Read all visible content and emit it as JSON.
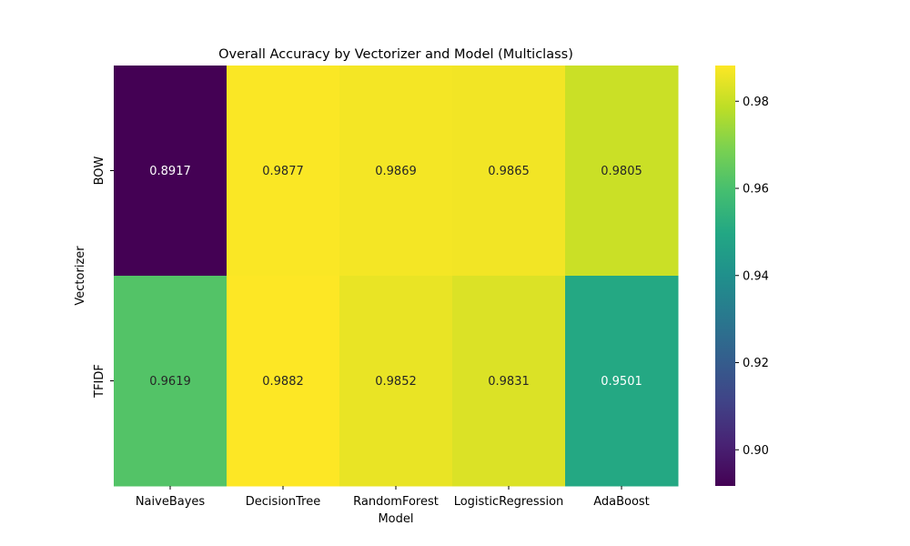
{
  "chart_data": {
    "type": "heatmap",
    "title": "Overall Accuracy by Vectorizer and Model (Multiclass)",
    "xlabel": "Model",
    "ylabel": "Vectorizer",
    "x_categories": [
      "NaiveBayes",
      "DecisionTree",
      "RandomForest",
      "LogisticRegression",
      "AdaBoost"
    ],
    "y_categories": [
      "BOW",
      "TFIDF"
    ],
    "values": [
      [
        0.8917,
        0.9877,
        0.9869,
        0.9865,
        0.9805
      ],
      [
        0.9619,
        0.9882,
        0.9852,
        0.9831,
        0.9501
      ]
    ],
    "value_labels": [
      [
        "0.8917",
        "0.9877",
        "0.9869",
        "0.9865",
        "0.9805"
      ],
      [
        "0.9619",
        "0.9882",
        "0.9852",
        "0.9831",
        "0.9501"
      ]
    ],
    "colormap": "viridis",
    "color_range": [
      0.8917,
      0.9882
    ],
    "colorbar_ticks": [
      0.9,
      0.92,
      0.94,
      0.96,
      0.98
    ],
    "colorbar_tick_labels": [
      "0.90",
      "0.92",
      "0.94",
      "0.96",
      "0.98"
    ],
    "annotations": true,
    "grid": false
  }
}
